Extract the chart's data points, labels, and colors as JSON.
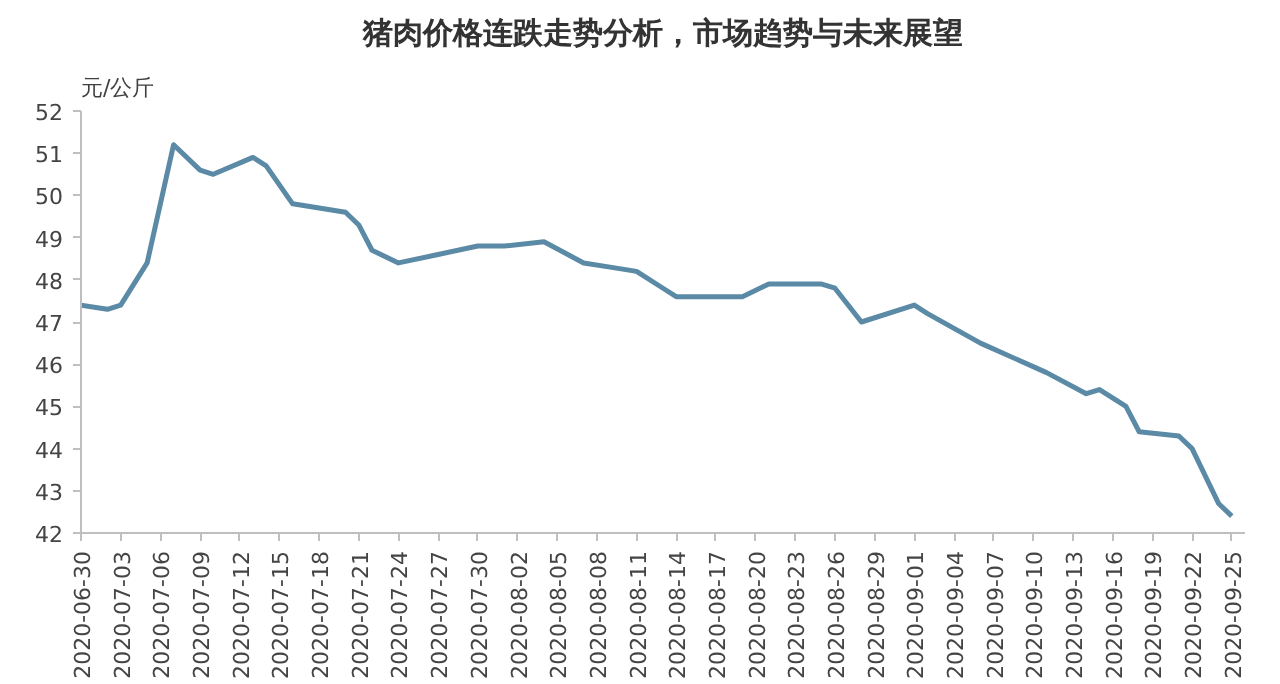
{
  "chart_data": {
    "type": "line",
    "title": "猪肉价格连跌走势分析，市场趋势与未来展望",
    "ylabel": "元/公斤",
    "x": [
      "2020-06-30",
      "2020-07-02",
      "2020-07-03",
      "2020-07-05",
      "2020-07-06",
      "2020-07-07",
      "2020-07-09",
      "2020-07-10",
      "2020-07-13",
      "2020-07-14",
      "2020-07-16",
      "2020-07-20",
      "2020-07-21",
      "2020-07-22",
      "2020-07-24",
      "2020-07-27",
      "2020-07-30",
      "2020-08-01",
      "2020-08-04",
      "2020-08-07",
      "2020-08-09",
      "2020-08-11",
      "2020-08-13",
      "2020-08-14",
      "2020-08-19",
      "2020-08-21",
      "2020-08-25",
      "2020-08-26",
      "2020-08-28",
      "2020-09-01",
      "2020-09-02",
      "2020-09-06",
      "2020-09-11",
      "2020-09-14",
      "2020-09-15",
      "2020-09-17",
      "2020-09-18",
      "2020-09-21",
      "2020-09-22",
      "2020-09-24",
      "2020-09-25"
    ],
    "series": [
      {
        "color": "#5b8aa6",
        "values": [
          47.4,
          47.3,
          47.4,
          48.4,
          49.8,
          51.2,
          50.6,
          50.5,
          50.9,
          50.7,
          49.8,
          49.6,
          49.3,
          48.7,
          48.4,
          48.6,
          48.8,
          48.8,
          48.9,
          48.4,
          48.3,
          48.2,
          47.8,
          47.6,
          47.6,
          47.9,
          47.9,
          47.8,
          47.0,
          47.4,
          47.2,
          46.5,
          45.8,
          45.3,
          45.4,
          45.0,
          44.4,
          44.3,
          44.0,
          42.7,
          42.4
        ]
      }
    ],
    "xlim": [
      "2020-06-30",
      "2020-09-26"
    ],
    "xticks": [
      "2020-06-30",
      "2020-07-03",
      "2020-07-06",
      "2020-07-09",
      "2020-07-12",
      "2020-07-15",
      "2020-07-18",
      "2020-07-21",
      "2020-07-24",
      "2020-07-27",
      "2020-07-30",
      "2020-08-02",
      "2020-08-05",
      "2020-08-08",
      "2020-08-11",
      "2020-08-14",
      "2020-08-17",
      "2020-08-20",
      "2020-08-23",
      "2020-08-26",
      "2020-08-29",
      "2020-09-01",
      "2020-09-04",
      "2020-09-07",
      "2020-09-10",
      "2020-09-13",
      "2020-09-16",
      "2020-09-19",
      "2020-09-22",
      "2020-09-25"
    ],
    "ylim": [
      42,
      52
    ],
    "yticks": [
      42,
      43,
      44,
      45,
      46,
      47,
      48,
      49,
      50,
      51,
      52
    ],
    "grid": false,
    "marker": "none",
    "line_style": "solid"
  }
}
